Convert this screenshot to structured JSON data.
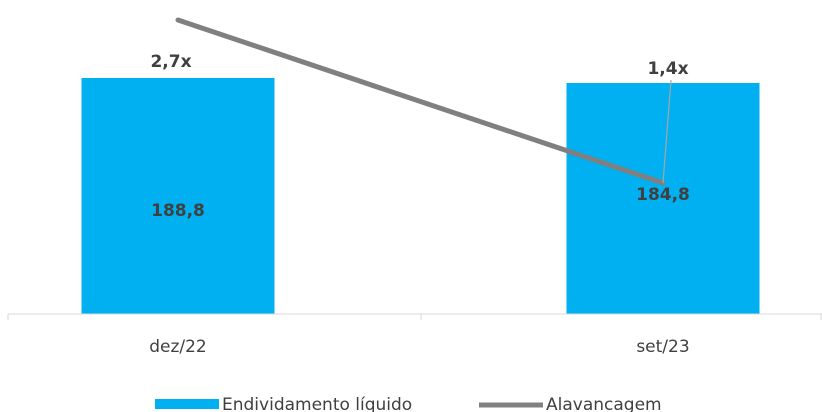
{
  "chart_data": {
    "type": "bar",
    "categories": [
      "dez/22",
      "set/23"
    ],
    "series": [
      {
        "name": "Endividamento líquido",
        "kind": "bar",
        "color": "#00B0F0",
        "values": [
          188.8,
          184.8
        ],
        "labels": [
          "188,8",
          "184,8"
        ]
      },
      {
        "name": "Alavancagem",
        "kind": "line",
        "color": "#808080",
        "values": [
          2.7,
          1.4
        ],
        "labels": [
          "2,7x",
          "1,4x"
        ]
      }
    ],
    "title": "",
    "xlabel": "",
    "ylabel": "",
    "legend_position": "bottom",
    "grid": false
  }
}
